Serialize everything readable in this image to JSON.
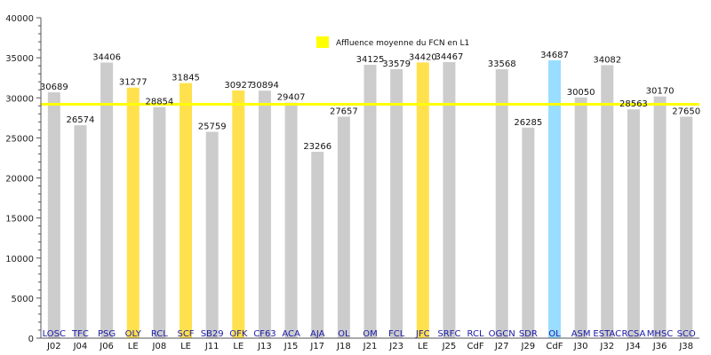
{
  "chart_data": {
    "type": "bar",
    "title": "",
    "xlabel": "",
    "ylabel": "",
    "ylim": [
      0,
      40000
    ],
    "yticks": [
      0,
      5000,
      10000,
      15000,
      20000,
      25000,
      30000,
      35000,
      40000
    ],
    "grid": false,
    "legend": {
      "placement": "top-center",
      "label": "Affluence moyenne du FCN en L1",
      "color": "#ffff00"
    },
    "reference_line": {
      "value": 29200,
      "color": "#ffff00"
    },
    "colors": {
      "default": "#cccccc",
      "highlight": "#ffe14d",
      "cup": "#99ddff"
    },
    "categories": [
      {
        "team": "LOSC",
        "day": "J02",
        "value": 30689,
        "color": "default"
      },
      {
        "team": "TFC",
        "day": "J04",
        "value": 26574,
        "color": "default"
      },
      {
        "team": "PSG",
        "day": "J06",
        "value": 34406,
        "color": "default"
      },
      {
        "team": "OLY",
        "day": "LE",
        "value": 31277,
        "color": "highlight"
      },
      {
        "team": "RCL",
        "day": "J08",
        "value": 28854,
        "color": "default"
      },
      {
        "team": "SCF",
        "day": "LE",
        "value": 31845,
        "color": "highlight"
      },
      {
        "team": "SB29",
        "day": "J11",
        "value": 25759,
        "color": "default"
      },
      {
        "team": "OFK",
        "day": "LE",
        "value": 30927,
        "color": "highlight"
      },
      {
        "team": "CF63",
        "day": "J13",
        "value": 30894,
        "color": "default"
      },
      {
        "team": "ACA",
        "day": "J15",
        "value": 29407,
        "color": "default"
      },
      {
        "team": "AJA",
        "day": "J17",
        "value": 23266,
        "color": "default"
      },
      {
        "team": "OL",
        "day": "J18",
        "value": 27657,
        "color": "default"
      },
      {
        "team": "OM",
        "day": "J21",
        "value": 34125,
        "color": "default"
      },
      {
        "team": "FCL",
        "day": "J23",
        "value": 33579,
        "color": "default"
      },
      {
        "team": "JFC",
        "day": "LE",
        "value": 34420,
        "color": "highlight"
      },
      {
        "team": "SRFC",
        "day": "J25",
        "value": 34467,
        "color": "default"
      },
      {
        "team": "RCL",
        "day": "CdF",
        "value": null,
        "color": "default"
      },
      {
        "team": "OGCN",
        "day": "J27",
        "value": 33568,
        "color": "default"
      },
      {
        "team": "SDR",
        "day": "J29",
        "value": 26285,
        "color": "default"
      },
      {
        "team": "OL",
        "day": "CdF",
        "value": 34687,
        "color": "cup"
      },
      {
        "team": "ASM",
        "day": "J30",
        "value": 30050,
        "color": "default"
      },
      {
        "team": "ESTAC",
        "day": "J32",
        "value": 34082,
        "color": "default"
      },
      {
        "team": "RCSA",
        "day": "J34",
        "value": 28563,
        "color": "default"
      },
      {
        "team": "MHSC",
        "day": "J36",
        "value": 30170,
        "color": "default"
      },
      {
        "team": "SCO",
        "day": "J38",
        "value": 27650,
        "color": "default"
      }
    ]
  }
}
